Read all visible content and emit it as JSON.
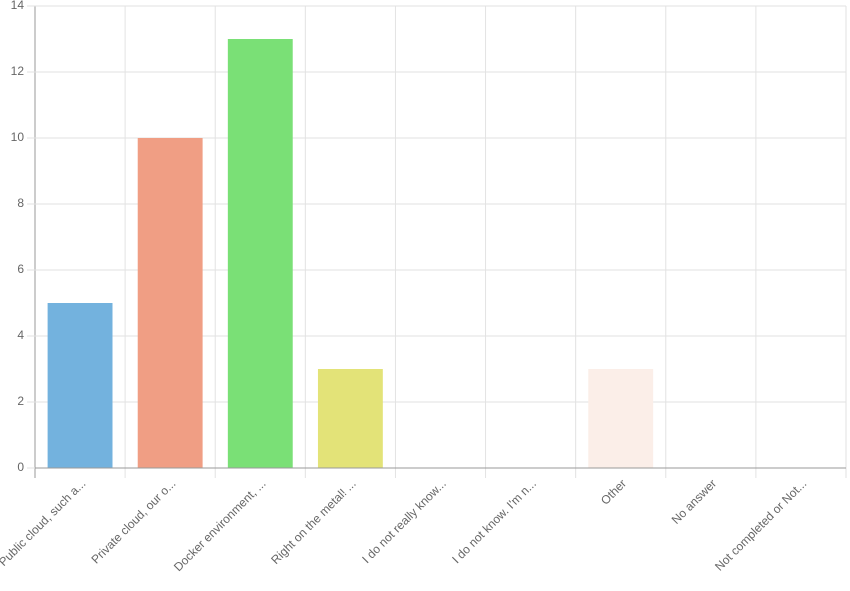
{
  "chart_data": {
    "type": "bar",
    "categories": [
      "Public cloud, such a...",
      "Private cloud, our o...",
      "Docker environment, ...",
      "Right on the metal! ...",
      "I do not really know...",
      "I do not know. I'm n...",
      "Other",
      "No answer",
      "Not completed or Not..."
    ],
    "values": [
      5,
      10,
      13,
      3,
      0,
      0,
      3,
      0,
      0
    ],
    "colors": [
      "#73b2de",
      "#f09e84",
      "#7ae076",
      "#e3e378",
      "#c49cde",
      "#9ed7e6",
      "#fbeee8",
      "#c8c8c8",
      "#f2c78f"
    ],
    "ylim": [
      0,
      14
    ],
    "yticks": [
      0,
      2,
      4,
      6,
      8,
      10,
      12,
      14
    ],
    "grid": true
  }
}
